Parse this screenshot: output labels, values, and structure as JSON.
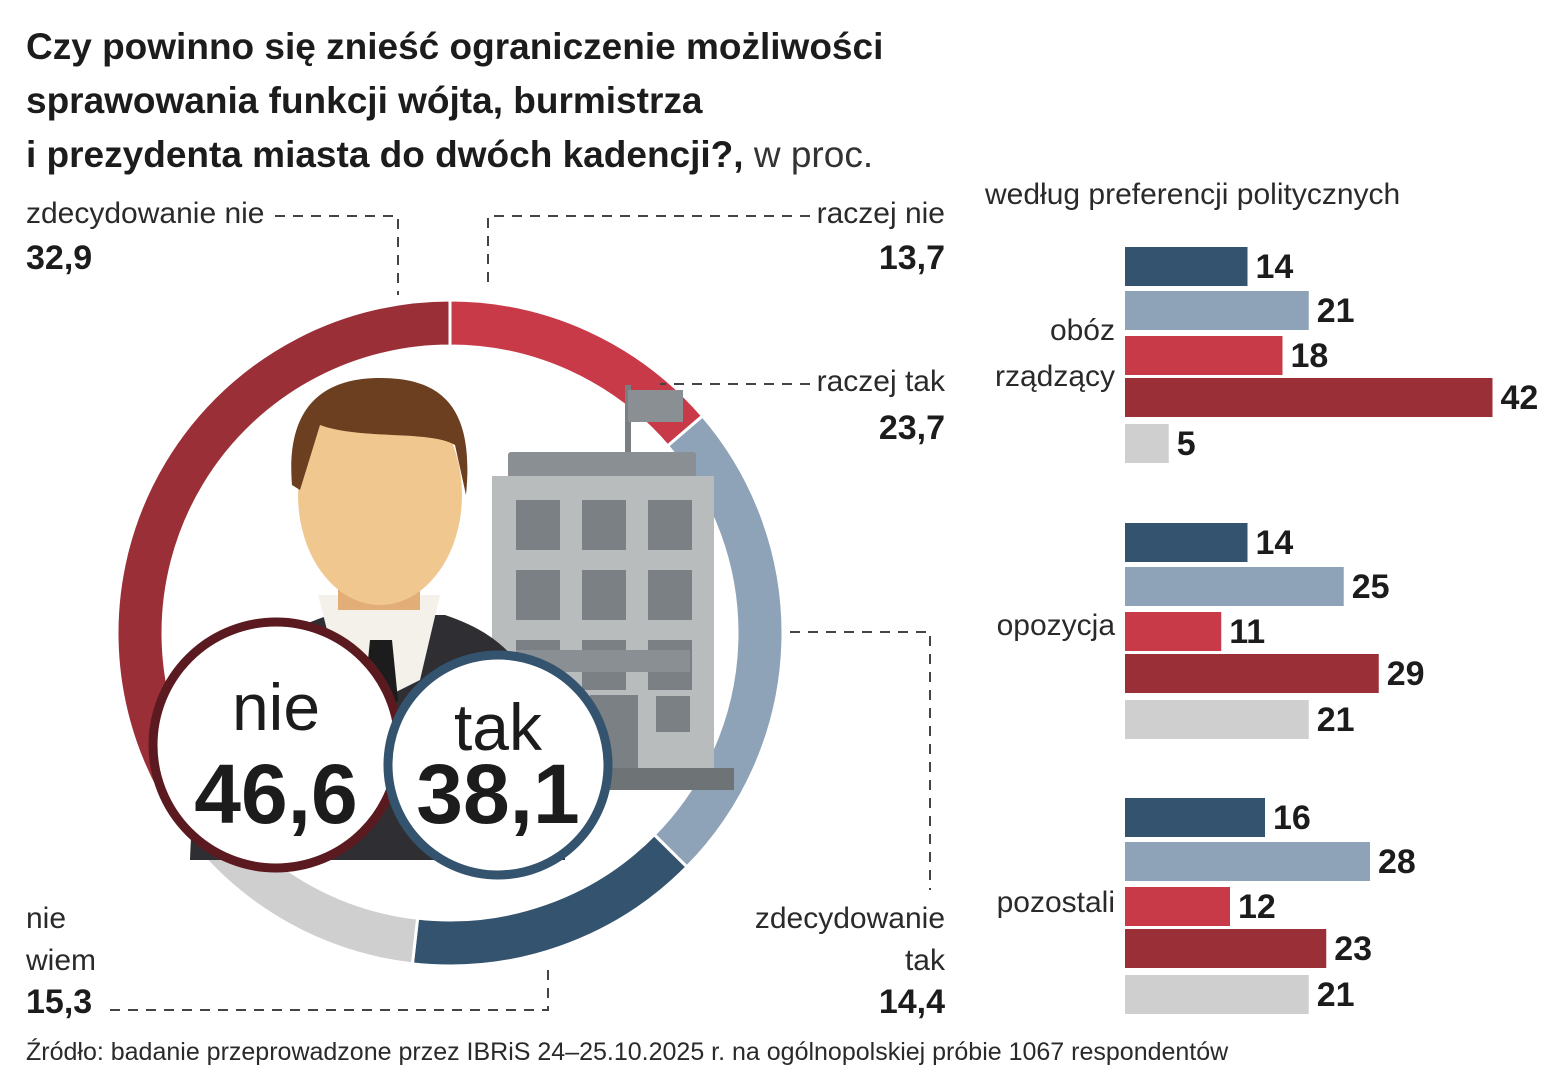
{
  "header": {
    "title": "Czy powinno się znieść ograniczenie możliwości sprawowania funkcji wójta, burmistrza i prezydenta miasta do dwóch kadencji?,",
    "title_line1": "Czy powinno się znieść ograniczenie możliwości",
    "title_line2": "sprawowania funkcji wójta, burmistrza",
    "title_line3": "i prezydenta miasta do dwóch kadencji?,",
    "unit": " w proc."
  },
  "colors": {
    "zdecydowanie_nie": "#9b2f37",
    "raczej_nie": "#c93a48",
    "raczej_tak": "#8fa3b8",
    "zdecydowanie_tak": "#34536e",
    "nie_wiem": "#cfcfcf"
  },
  "chart_data": [
    {
      "type": "pie",
      "variant": "donut",
      "slices": [
        {
          "key": "raczej_nie",
          "label": "raczej nie",
          "value": 13.7,
          "value_label": "13,7"
        },
        {
          "key": "raczej_tak",
          "label": "raczej tak",
          "value": 23.7,
          "value_label": "23,7"
        },
        {
          "key": "zdecydowanie_tak",
          "label": "zdecydowanie tak",
          "label_lines": [
            "zdecydowanie",
            "tak"
          ],
          "value": 14.4,
          "value_label": "14,4"
        },
        {
          "key": "nie_wiem",
          "label": "nie wiem",
          "label_lines": [
            "nie",
            "wiem"
          ],
          "value": 15.3,
          "value_label": "15,3"
        },
        {
          "key": "zdecydowanie_nie",
          "label": "zdecydowanie nie",
          "value": 32.9,
          "value_label": "32,9"
        }
      ],
      "totals": {
        "nie": {
          "label": "nie",
          "value": 46.6,
          "value_label": "46,6"
        },
        "tak": {
          "label": "tak",
          "value": 38.1,
          "value_label": "38,1"
        }
      }
    },
    {
      "type": "bar",
      "orientation": "horizontal",
      "title": "według preferencji politycznych",
      "series_order": [
        "zdecydowanie_tak",
        "raczej_tak",
        "raczej_nie",
        "zdecydowanie_nie",
        "nie_wiem"
      ],
      "groups": [
        {
          "label": "obóz rządzący",
          "label_lines": [
            "obóz",
            "rządzący"
          ],
          "values": [
            14,
            21,
            18,
            42,
            5
          ]
        },
        {
          "label": "opozycja",
          "label_lines": [
            "opozycja"
          ],
          "values": [
            14,
            25,
            11,
            29,
            21
          ]
        },
        {
          "label": "pozostali",
          "label_lines": [
            "pozostali"
          ],
          "values": [
            16,
            28,
            12,
            23,
            21
          ]
        }
      ]
    }
  ],
  "footer": {
    "source": "Źródło: badanie przeprowadzone przez IBRiS 24–25.10.2025 r. na ogólnopolskiej próbie 1067 respondentów"
  }
}
